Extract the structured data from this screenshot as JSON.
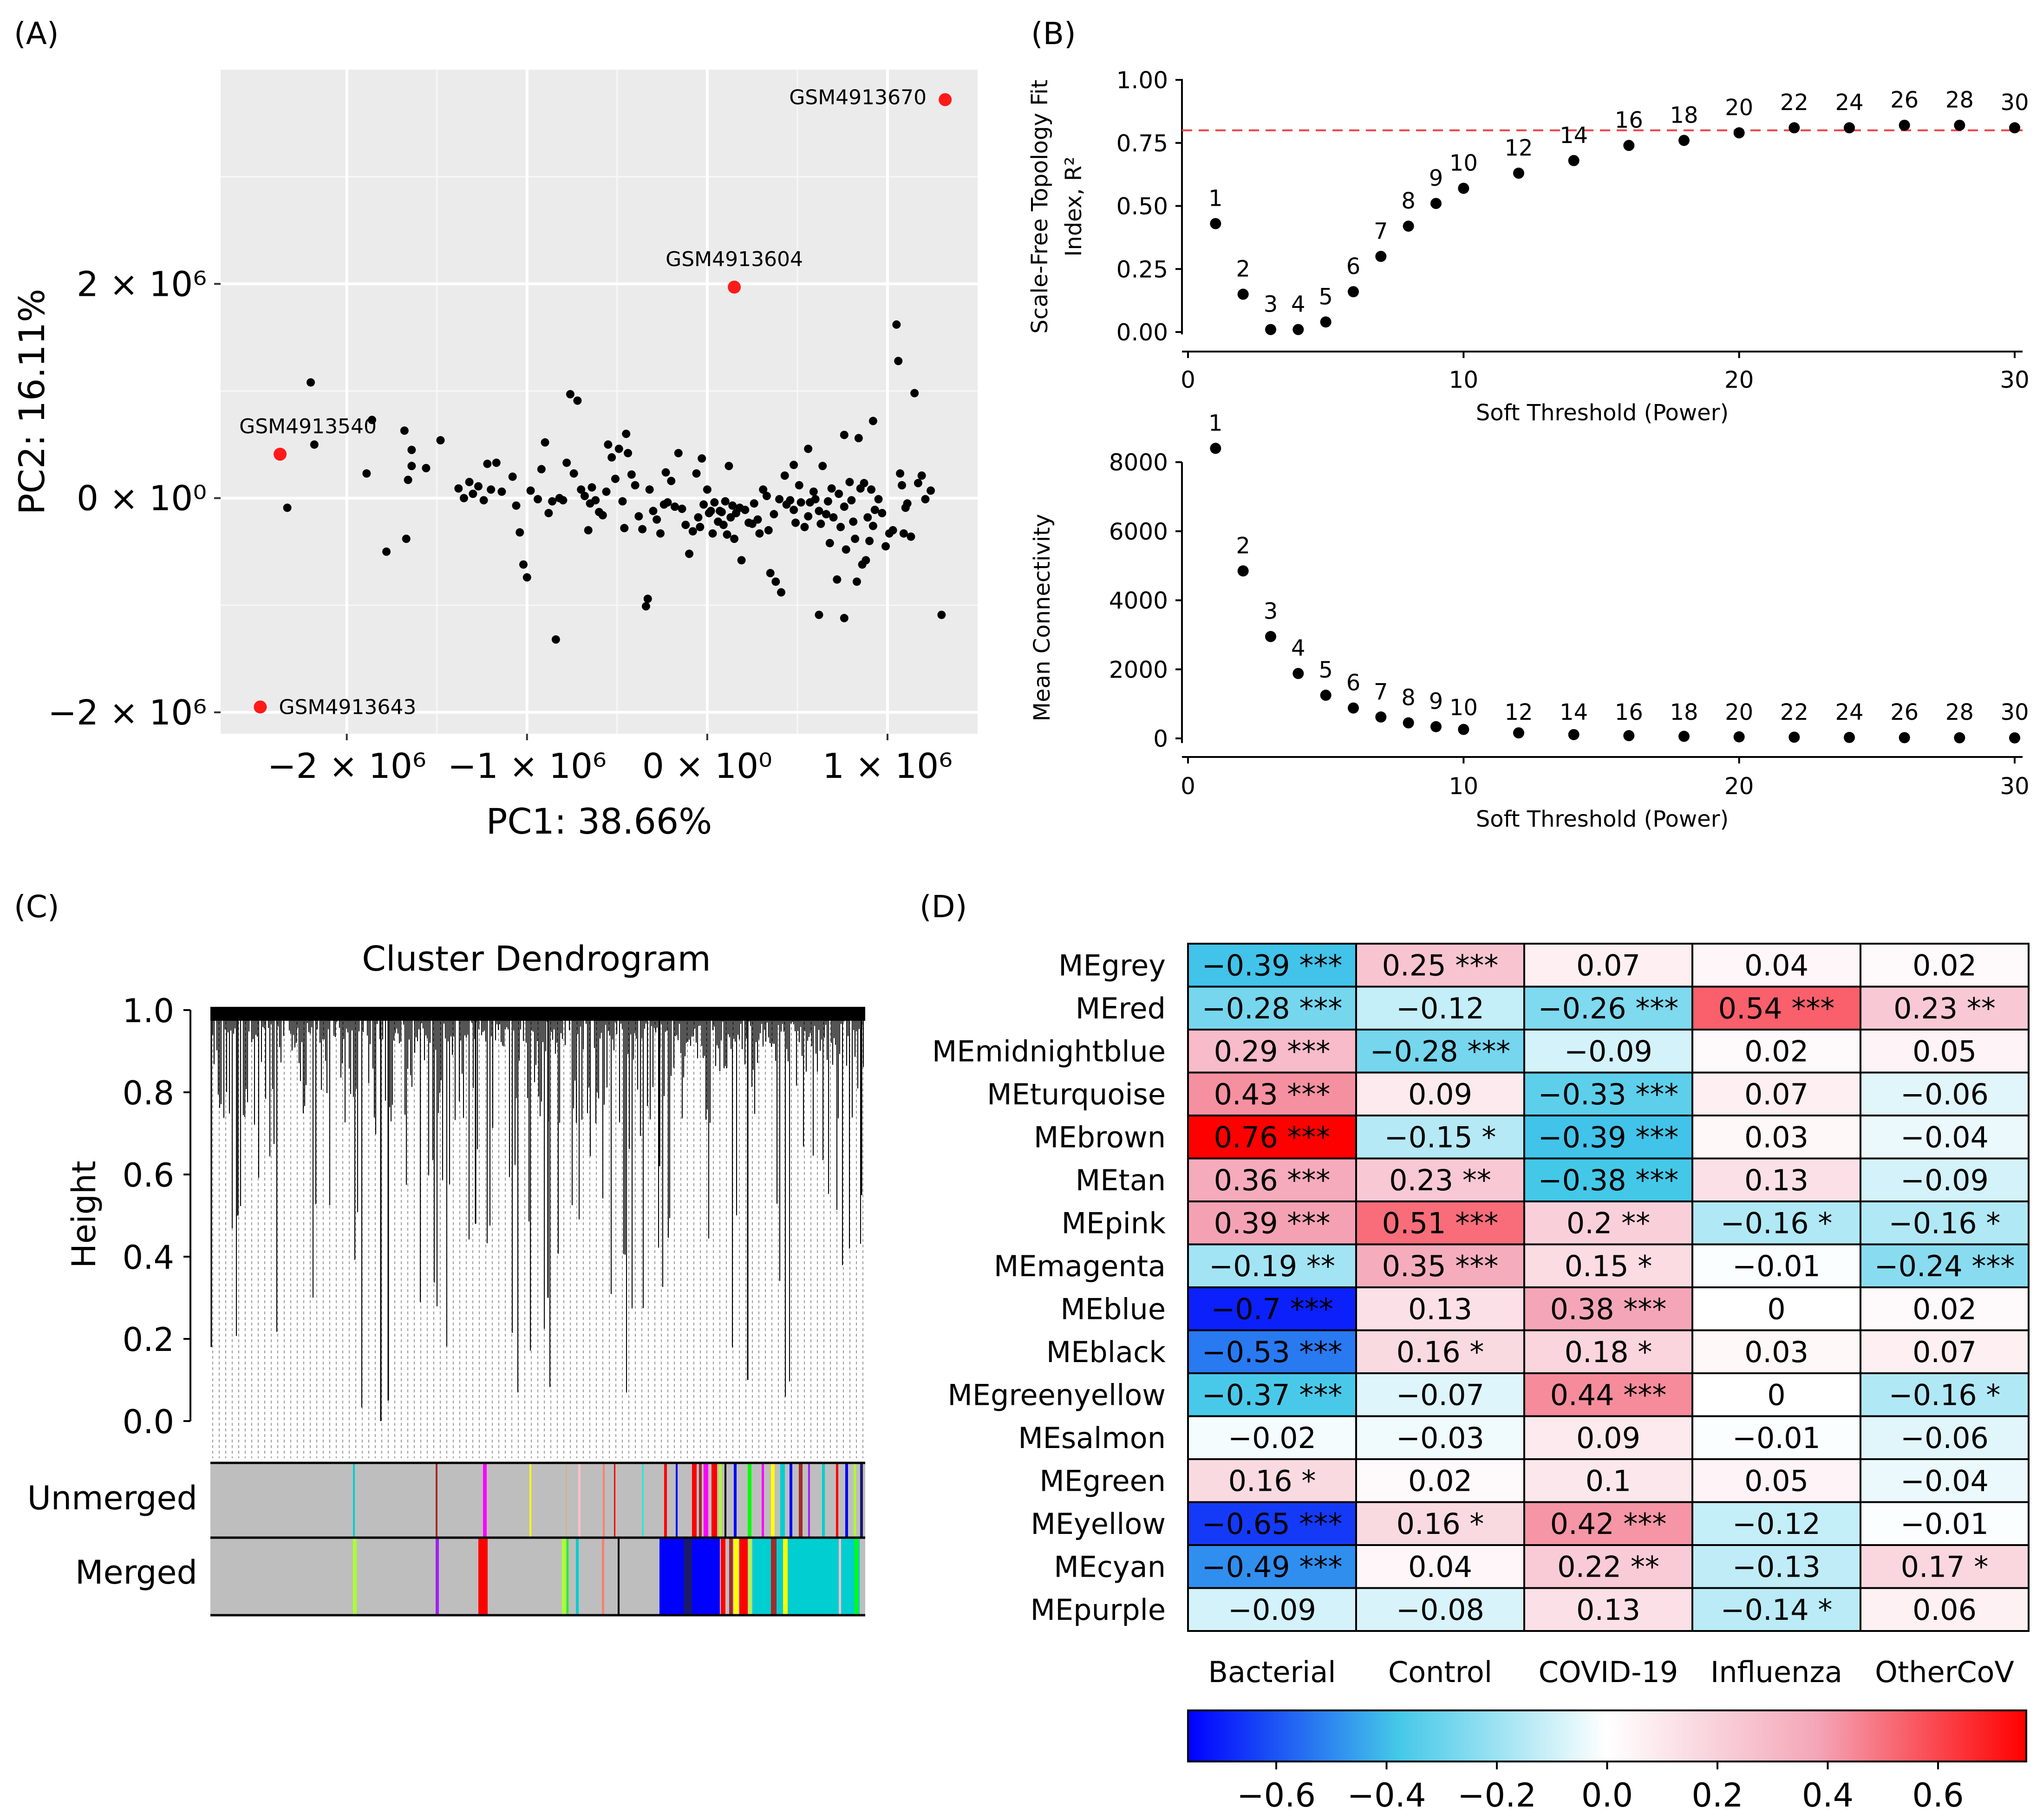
{
  "panels": {
    "a": "(A)",
    "b": "(B)",
    "c": "(C)",
    "d": "(D)"
  },
  "chart_data": [
    {
      "panel": "A",
      "type": "scatter",
      "xlabel": "PC1: 38.66%",
      "ylabel": "PC2: 16.11%",
      "xlim": [
        -2700000,
        1500000
      ],
      "ylim": [
        -2200000,
        4000000
      ],
      "xticks": [
        -2000000,
        -1000000,
        0,
        1000000
      ],
      "xtick_labels": [
        "−2 × 10⁶",
        "−1 × 10⁶",
        "0 × 10⁰",
        "1 × 10⁶"
      ],
      "yticks": [
        -2000000,
        0,
        2000000
      ],
      "ytick_labels": [
        "−2 × 10⁶",
        "0 × 10⁰",
        "2 × 10⁶"
      ],
      "outliers": [
        {
          "label": "GSM4913670",
          "x": 1320000,
          "y": 3720000
        },
        {
          "label": "GSM4913604",
          "x": 150000,
          "y": 1970000
        },
        {
          "label": "GSM4913540",
          "x": -2370000,
          "y": 410000
        },
        {
          "label": "GSM4913643",
          "x": -2480000,
          "y": -1950000
        }
      ],
      "points": [
        [
          -2200000,
          1080000
        ],
        [
          -2180000,
          500000
        ],
        [
          -2330000,
          -90000
        ],
        [
          -1890000,
          230000
        ],
        [
          -1860000,
          730000
        ],
        [
          -1780000,
          -500000
        ],
        [
          -1680000,
          630000
        ],
        [
          -1640000,
          450000
        ],
        [
          -1640000,
          300000
        ],
        [
          -1660000,
          170000
        ],
        [
          -1670000,
          -380000
        ],
        [
          -1560000,
          280000
        ],
        [
          -1480000,
          540000
        ],
        [
          -1380000,
          90000
        ],
        [
          -1350000,
          0
        ],
        [
          -1320000,
          150000
        ],
        [
          -1300000,
          40000
        ],
        [
          -1270000,
          110000
        ],
        [
          -1240000,
          -20000
        ],
        [
          -1220000,
          320000
        ],
        [
          -1200000,
          80000
        ],
        [
          -1170000,
          330000
        ],
        [
          -1140000,
          60000
        ],
        [
          -1080000,
          200000
        ],
        [
          -1060000,
          -70000
        ],
        [
          -1040000,
          -320000
        ],
        [
          -1020000,
          -620000
        ],
        [
          -1000000,
          -740000
        ],
        [
          -980000,
          70000
        ],
        [
          -940000,
          -10000
        ],
        [
          -920000,
          270000
        ],
        [
          -900000,
          520000
        ],
        [
          -880000,
          -140000
        ],
        [
          -860000,
          -30000
        ],
        [
          -840000,
          -1320000
        ],
        [
          -820000,
          0
        ],
        [
          -800000,
          -20000
        ],
        [
          -780000,
          330000
        ],
        [
          -760000,
          970000
        ],
        [
          -740000,
          230000
        ],
        [
          -720000,
          910000
        ],
        [
          -700000,
          80000
        ],
        [
          -680000,
          20000
        ],
        [
          -660000,
          -300000
        ],
        [
          -640000,
          100000
        ],
        [
          -620000,
          -20000
        ],
        [
          -600000,
          -130000
        ],
        [
          -580000,
          -160000
        ],
        [
          -560000,
          60000
        ],
        [
          -550000,
          500000
        ],
        [
          -530000,
          380000
        ],
        [
          -510000,
          180000
        ],
        [
          -490000,
          460000
        ],
        [
          -470000,
          -30000
        ],
        [
          -460000,
          -280000
        ],
        [
          -440000,
          420000
        ],
        [
          -420000,
          220000
        ],
        [
          -400000,
          120000
        ],
        [
          -380000,
          -170000
        ],
        [
          -360000,
          -290000
        ],
        [
          -340000,
          -1010000
        ],
        [
          -320000,
          80000
        ],
        [
          -300000,
          -120000
        ],
        [
          -280000,
          -200000
        ],
        [
          -260000,
          -330000
        ],
        [
          -240000,
          -60000
        ],
        [
          -220000,
          -40000
        ],
        [
          -200000,
          160000
        ],
        [
          -180000,
          -80000
        ],
        [
          -160000,
          420000
        ],
        [
          -140000,
          -100000
        ],
        [
          -120000,
          -250000
        ],
        [
          -100000,
          -520000
        ],
        [
          -80000,
          -310000
        ],
        [
          -60000,
          230000
        ],
        [
          -50000,
          -180000
        ],
        [
          -40000,
          -270000
        ],
        [
          -20000,
          -60000
        ],
        [
          0,
          80000
        ],
        [
          10000,
          -140000
        ],
        [
          20000,
          -120000
        ],
        [
          30000,
          -330000
        ],
        [
          40000,
          -40000
        ],
        [
          60000,
          -220000
        ],
        [
          70000,
          -120000
        ],
        [
          80000,
          -130000
        ],
        [
          90000,
          -250000
        ],
        [
          100000,
          -30000
        ],
        [
          110000,
          -340000
        ],
        [
          120000,
          300000
        ],
        [
          130000,
          -180000
        ],
        [
          140000,
          -70000
        ],
        [
          150000,
          -380000
        ],
        [
          160000,
          -140000
        ],
        [
          180000,
          -90000
        ],
        [
          190000,
          -580000
        ],
        [
          210000,
          -110000
        ],
        [
          230000,
          -230000
        ],
        [
          250000,
          -240000
        ],
        [
          260000,
          -50000
        ],
        [
          280000,
          -200000
        ],
        [
          290000,
          -330000
        ],
        [
          310000,
          80000
        ],
        [
          330000,
          20000
        ],
        [
          340000,
          -300000
        ],
        [
          350000,
          -700000
        ],
        [
          370000,
          -150000
        ],
        [
          380000,
          -780000
        ],
        [
          400000,
          -10000
        ],
        [
          410000,
          -880000
        ],
        [
          430000,
          210000
        ],
        [
          440000,
          -60000
        ],
        [
          460000,
          -20000
        ],
        [
          480000,
          -110000
        ],
        [
          490000,
          -230000
        ],
        [
          510000,
          120000
        ],
        [
          520000,
          -40000
        ],
        [
          540000,
          -270000
        ],
        [
          560000,
          -170000
        ],
        [
          570000,
          -40000
        ],
        [
          590000,
          60000
        ],
        [
          600000,
          -10000
        ],
        [
          620000,
          -120000
        ],
        [
          630000,
          -240000
        ],
        [
          640000,
          300000
        ],
        [
          660000,
          -150000
        ],
        [
          670000,
          -30000
        ],
        [
          680000,
          -420000
        ],
        [
          690000,
          90000
        ],
        [
          700000,
          -180000
        ],
        [
          720000,
          -760000
        ],
        [
          730000,
          40000
        ],
        [
          740000,
          -270000
        ],
        [
          760000,
          -80000
        ],
        [
          770000,
          -480000
        ],
        [
          790000,
          150000
        ],
        [
          800000,
          -20000
        ],
        [
          810000,
          -220000
        ],
        [
          820000,
          -380000
        ],
        [
          830000,
          -780000
        ],
        [
          850000,
          90000
        ],
        [
          860000,
          -620000
        ],
        [
          870000,
          140000
        ],
        [
          880000,
          -580000
        ],
        [
          890000,
          -180000
        ],
        [
          900000,
          -400000
        ],
        [
          910000,
          80000
        ],
        [
          920000,
          -260000
        ],
        [
          930000,
          -110000
        ],
        [
          950000,
          -10000
        ],
        [
          970000,
          -140000
        ],
        [
          990000,
          -450000
        ],
        [
          1010000,
          -330000
        ],
        [
          1030000,
          -300000
        ],
        [
          1050000,
          1620000
        ],
        [
          1060000,
          1280000
        ],
        [
          1070000,
          230000
        ],
        [
          1080000,
          120000
        ],
        [
          1090000,
          -330000
        ],
        [
          1100000,
          -90000
        ],
        [
          1110000,
          -50000
        ],
        [
          1130000,
          -360000
        ],
        [
          1150000,
          980000
        ],
        [
          1170000,
          140000
        ],
        [
          1190000,
          210000
        ],
        [
          1210000,
          -10000
        ],
        [
          1240000,
          70000
        ],
        [
          1300000,
          -1090000
        ],
        [
          620000,
          -1090000
        ],
        [
          760000,
          -1120000
        ],
        [
          -330000,
          -940000
        ],
        [
          -650000,
          -50000
        ],
        [
          840000,
          560000
        ],
        [
          920000,
          720000
        ],
        [
          760000,
          590000
        ],
        [
          -450000,
          600000
        ],
        [
          -230000,
          240000
        ],
        [
          -30000,
          370000
        ],
        [
          480000,
          310000
        ],
        [
          560000,
          460000
        ]
      ]
    },
    {
      "panel": "B-top",
      "type": "scatter",
      "xlabel": "Soft Threshold (Power)",
      "ylabel": "Scale-Free Topology Fit Index, R²",
      "ylabel_lines": [
        "Scale-Free Topology Fit",
        "Index, R²"
      ],
      "xlim": [
        0,
        30
      ],
      "ylim": [
        0,
        1
      ],
      "xticks": [
        0,
        10,
        20,
        30
      ],
      "yticks": [
        0,
        0.25,
        0.5,
        0.75,
        1.0
      ],
      "ytick_labels": [
        "0.00",
        "0.25",
        "0.50",
        "0.75",
        "1.00"
      ],
      "threshold": 0.8,
      "x": [
        1,
        2,
        3,
        4,
        5,
        6,
        7,
        8,
        9,
        10,
        12,
        14,
        16,
        18,
        20,
        22,
        24,
        26,
        28,
        30
      ],
      "y": [
        0.43,
        0.15,
        0.01,
        0.01,
        0.04,
        0.16,
        0.3,
        0.42,
        0.51,
        0.57,
        0.63,
        0.68,
        0.74,
        0.76,
        0.79,
        0.81,
        0.81,
        0.82,
        0.82,
        0.81
      ]
    },
    {
      "panel": "B-bottom",
      "type": "scatter",
      "xlabel": "Soft Threshold (Power)",
      "ylabel": "Mean Connectivity",
      "xlim": [
        0,
        30
      ],
      "ylim": [
        0,
        8500
      ],
      "xticks": [
        0,
        10,
        20,
        30
      ],
      "yticks": [
        0,
        2000,
        4000,
        6000,
        8000
      ],
      "x": [
        1,
        2,
        3,
        4,
        5,
        6,
        7,
        8,
        9,
        10,
        12,
        14,
        16,
        18,
        20,
        22,
        24,
        26,
        28,
        30
      ],
      "y": [
        8400,
        4850,
        2950,
        1880,
        1250,
        880,
        620,
        450,
        340,
        260,
        160,
        110,
        80,
        60,
        45,
        35,
        28,
        22,
        18,
        15
      ]
    },
    {
      "panel": "C",
      "type": "dendrogram",
      "title": "Cluster Dendrogram",
      "ylabel": "Height",
      "ylim": [
        0,
        1
      ],
      "yticks": [
        0,
        0.2,
        0.4,
        0.6,
        0.8,
        1.0
      ],
      "ytick_labels": [
        "0.0",
        "0.2",
        "0.4",
        "0.6",
        "0.8",
        "1.0"
      ],
      "color_rows": [
        "Unmerged",
        "Merged"
      ],
      "module_colors": [
        "#bebebe",
        "#00ced1",
        "#0000ff",
        "#ff0000",
        "#ff00ff",
        "#adff2f",
        "#a52a2a",
        "#ffff00",
        "#191970",
        "#ffc0cb",
        "#40e0d0",
        "#000000",
        "#00ff00",
        "#a020f0",
        "#d2b48c",
        "#fa8072"
      ]
    },
    {
      "panel": "D",
      "type": "heatmap",
      "rows": [
        "MEgrey",
        "MEred",
        "MEmidnightblue",
        "MEturquoise",
        "MEbrown",
        "MEtan",
        "MEpink",
        "MEmagenta",
        "MEblue",
        "MEblack",
        "MEgreenyellow",
        "MEsalmon",
        "MEgreen",
        "MEyellow",
        "MEcyan",
        "MEpurple"
      ],
      "columns": [
        "Bacterial",
        "Control",
        "COVID-19",
        "Influenza",
        "OtherCoV"
      ],
      "values": [
        [
          -0.39,
          0.25,
          0.07,
          0.04,
          0.02
        ],
        [
          -0.28,
          -0.12,
          -0.26,
          0.54,
          0.23
        ],
        [
          0.29,
          -0.28,
          -0.09,
          0.02,
          0.05
        ],
        [
          0.43,
          0.09,
          -0.33,
          0.07,
          -0.06
        ],
        [
          0.76,
          -0.15,
          -0.39,
          0.03,
          -0.04
        ],
        [
          0.36,
          0.23,
          -0.38,
          0.13,
          -0.09
        ],
        [
          0.39,
          0.51,
          0.2,
          -0.16,
          -0.16
        ],
        [
          -0.19,
          0.35,
          0.15,
          -0.01,
          -0.24
        ],
        [
          -0.7,
          0.13,
          0.38,
          0,
          0.02
        ],
        [
          -0.53,
          0.16,
          0.18,
          0.03,
          0.07
        ],
        [
          -0.37,
          -0.07,
          0.44,
          0,
          -0.16
        ],
        [
          -0.02,
          -0.03,
          0.09,
          -0.01,
          -0.06
        ],
        [
          0.16,
          0.02,
          0.1,
          0.05,
          -0.04
        ],
        [
          -0.65,
          0.16,
          0.42,
          -0.12,
          -0.01
        ],
        [
          -0.49,
          0.04,
          0.22,
          -0.13,
          0.17
        ],
        [
          -0.09,
          -0.08,
          0.13,
          -0.14,
          0.06
        ]
      ],
      "labels": [
        [
          "−0.39 ***",
          "0.25 ***",
          "0.07",
          "0.04",
          "0.02"
        ],
        [
          "−0.28 ***",
          "−0.12",
          "−0.26 ***",
          "0.54 ***",
          "0.23 **"
        ],
        [
          "0.29 ***",
          "−0.28 ***",
          "−0.09",
          "0.02",
          "0.05"
        ],
        [
          "0.43 ***",
          "0.09",
          "−0.33 ***",
          "0.07",
          "−0.06"
        ],
        [
          "0.76 ***",
          "−0.15 *",
          "−0.39 ***",
          "0.03",
          "−0.04"
        ],
        [
          "0.36 ***",
          "0.23 **",
          "−0.38 ***",
          "0.13",
          "−0.09"
        ],
        [
          "0.39 ***",
          "0.51 ***",
          "0.2 **",
          "−0.16 *",
          "−0.16 *"
        ],
        [
          "−0.19 **",
          "0.35 ***",
          "0.15 *",
          "−0.01",
          "−0.24 ***"
        ],
        [
          "−0.7 ***",
          "0.13",
          "0.38 ***",
          "0",
          "0.02"
        ],
        [
          "−0.53 ***",
          "0.16 *",
          "0.18 *",
          "0.03",
          "0.07"
        ],
        [
          "−0.37 ***",
          "−0.07",
          "0.44 ***",
          "0",
          "−0.16 *"
        ],
        [
          "−0.02",
          "−0.03",
          "0.09",
          "−0.01",
          "−0.06"
        ],
        [
          "0.16 *",
          "0.02",
          "0.1",
          "0.05",
          "−0.04"
        ],
        [
          "−0.65 ***",
          "0.16 *",
          "0.42 ***",
          "−0.12",
          "−0.01"
        ],
        [
          "−0.49 ***",
          "0.04",
          "0.22 **",
          "−0.13",
          "0.17 *"
        ],
        [
          "−0.09",
          "−0.08",
          "0.13",
          "−0.14 *",
          "0.06"
        ]
      ],
      "color_scale": {
        "min": -0.76,
        "max": 0.76,
        "low": "#0000ff",
        "mid1": "#44c8e8",
        "center": "#ffffff",
        "mid2": "#f4a6b8",
        "high": "#ff0000"
      },
      "colorbar_ticks": [
        -0.6,
        -0.4,
        -0.2,
        0,
        0.2,
        0.4,
        0.6
      ],
      "colorbar_labels": [
        "−0.6",
        "−0.4",
        "−0.2",
        "0.0",
        "0.2",
        "0.4",
        "0.6"
      ]
    }
  ]
}
